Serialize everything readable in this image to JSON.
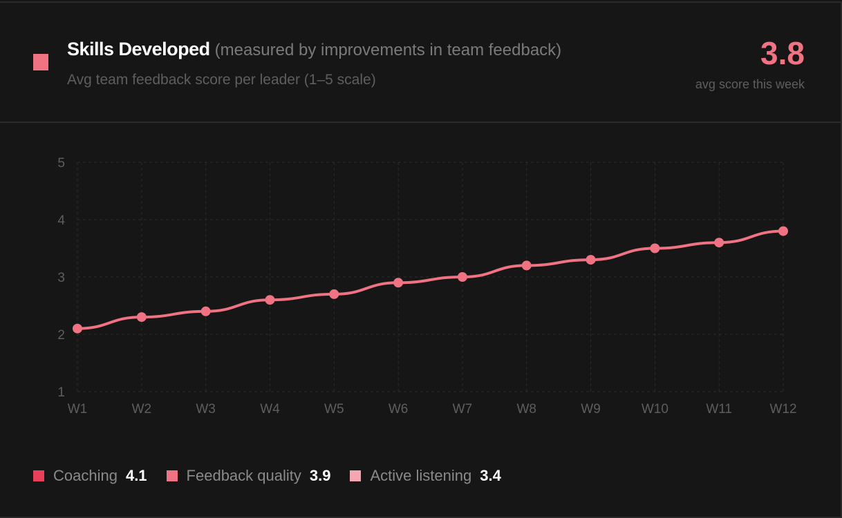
{
  "header": {
    "title": "Skills Developed",
    "subtitle": "(measured by improvements in team feedback)",
    "description": "Avg team feedback score per leader (1–5 scale)",
    "score": "3.8",
    "score_caption": "avg score this week",
    "accent": "#f07383"
  },
  "chart_data": {
    "type": "line",
    "title": "Skills Developed",
    "categories": [
      "W1",
      "W2",
      "W3",
      "W4",
      "W5",
      "W6",
      "W7",
      "W8",
      "W9",
      "W10",
      "W11",
      "W12"
    ],
    "series": [
      {
        "name": "Avg team feedback score",
        "values": [
          2.1,
          2.3,
          2.4,
          2.6,
          2.7,
          2.9,
          3.0,
          3.2,
          3.3,
          3.5,
          3.6,
          3.8
        ],
        "color": "#f07383"
      }
    ],
    "ylim": [
      1,
      5
    ],
    "yticks": [
      "1",
      "2",
      "3",
      "4",
      "5"
    ],
    "grid": true
  },
  "legend": [
    {
      "label": "Coaching",
      "value": "4.1",
      "color": "#e8405a"
    },
    {
      "label": "Feedback quality",
      "value": "3.9",
      "color": "#f07383"
    },
    {
      "label": "Active listening",
      "value": "3.4",
      "color": "#f4a7b0"
    }
  ]
}
